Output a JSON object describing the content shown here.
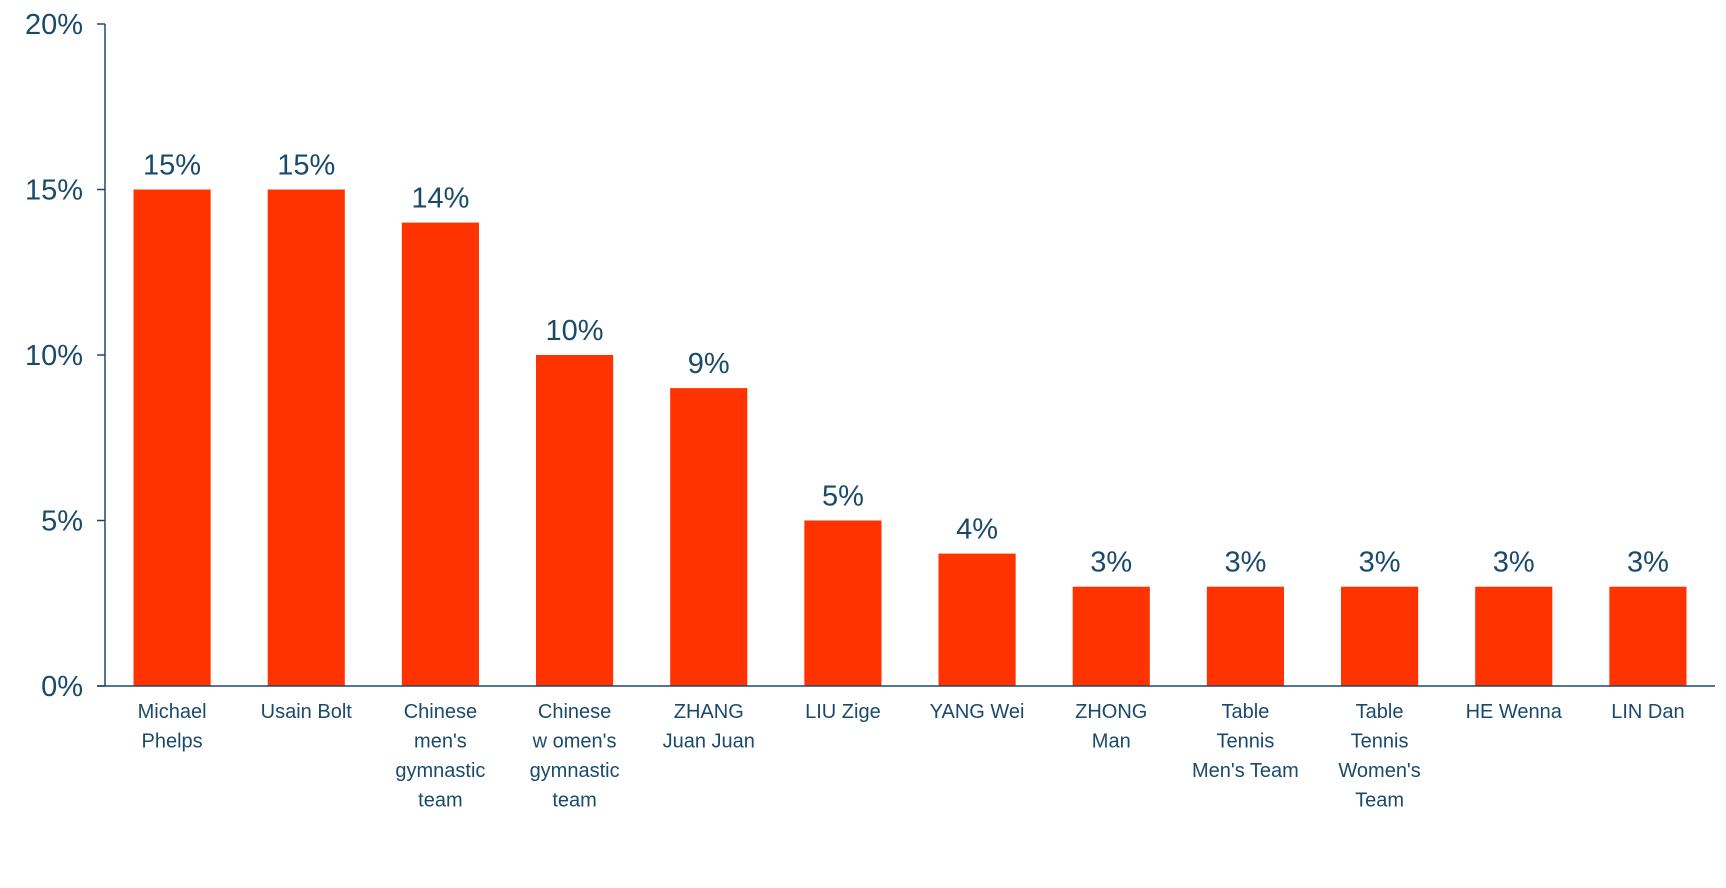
{
  "chart_data": {
    "type": "bar",
    "categories": [
      [
        "Michael",
        "Phelps"
      ],
      [
        "Usain Bolt"
      ],
      [
        "Chinese",
        "men's",
        "gymnastic",
        "team"
      ],
      [
        "Chinese",
        "w omen's",
        "gymnastic",
        "team"
      ],
      [
        "ZHANG",
        "Juan Juan"
      ],
      [
        "LIU Zige"
      ],
      [
        "YANG Wei"
      ],
      [
        "ZHONG",
        "Man"
      ],
      [
        "Table",
        "Tennis",
        "Men's Team"
      ],
      [
        "Table",
        "Tennis",
        "Women's",
        "Team"
      ],
      [
        "HE Wenna"
      ],
      [
        "LIN Dan"
      ]
    ],
    "values": [
      15,
      15,
      14,
      10,
      9,
      5,
      4,
      3,
      3,
      3,
      3,
      3
    ],
    "value_labels": [
      "15%",
      "15%",
      "14%",
      "10%",
      "9%",
      "5%",
      "4%",
      "3%",
      "3%",
      "3%",
      "3%",
      "3%"
    ],
    "yticks": [
      0,
      5,
      10,
      15,
      20
    ],
    "ytick_labels": [
      "0%",
      "5%",
      "10%",
      "15%",
      "20%"
    ],
    "ylim": [
      0,
      20
    ],
    "grid": false,
    "bar_color": "#ff3300",
    "axis_color": "#1a4a6b",
    "text_color": "#1a4a6b"
  }
}
